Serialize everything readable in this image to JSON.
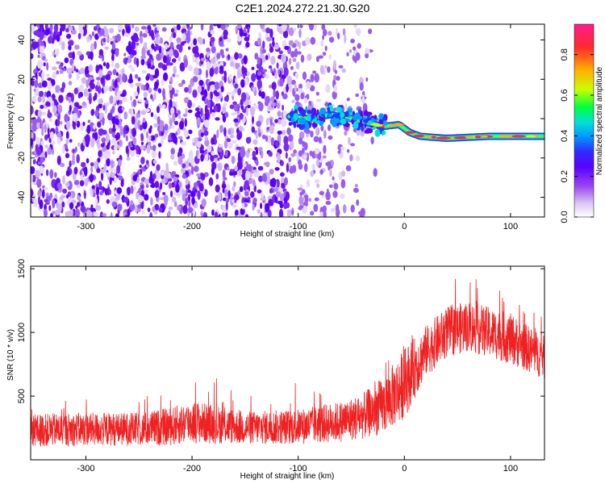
{
  "title": "C2E1.2024.272.21.30.G20",
  "colors": {
    "snr_line": "#ee2222",
    "axis": "#000000",
    "colormap": [
      "#ffffff",
      "#dcc6f2",
      "#9a46f0",
      "#6a00e8",
      "#2f2cff",
      "#009cff",
      "#00e0d8",
      "#00ff40",
      "#c8ff00",
      "#ffb000",
      "#ff2a2a",
      "#ff1a90"
    ]
  },
  "chart_data": [
    {
      "type": "heatmap",
      "title": "C2E1.2024.272.21.30.G20",
      "xlabel": "Height of straight line (km)",
      "ylabel": "Frequency (Hz)",
      "xlim": [
        -352,
        132
      ],
      "ylim": [
        -50,
        48
      ],
      "xticks": [
        -300,
        -200,
        -100,
        0,
        100
      ],
      "xtick_labels": [
        "-300",
        "-200",
        "-100",
        "0",
        "100"
      ],
      "yticks": [
        -40,
        -20,
        0,
        20,
        40
      ],
      "ytick_labels": [
        "-40",
        "-20",
        "0",
        "20",
        "40"
      ],
      "colorbar": {
        "label": "Normalized spectral amplitude",
        "range": [
          0,
          0.95
        ],
        "ticks": [
          0.0,
          0.2,
          0.4,
          0.6,
          0.8
        ],
        "tick_labels": [
          "0.0",
          "0.2",
          "0.4",
          "0.6",
          "0.8"
        ]
      },
      "signal_trace": {
        "description_points_height_km": [
          -108,
          -90,
          -70,
          -50,
          -35,
          -20,
          -5,
          5,
          15,
          40,
          80,
          132
        ],
        "frequency_hz": [
          1,
          0,
          2,
          0,
          -2,
          -4,
          -3,
          -7,
          -9,
          -10,
          -9,
          -9
        ]
      }
    },
    {
      "type": "line",
      "xlabel": "Height of straight line (km)",
      "ylabel": "SNR (10 * v/v)",
      "xlim": [
        -352,
        132
      ],
      "ylim": [
        0,
        1520
      ],
      "xticks": [
        -300,
        -200,
        -100,
        0,
        100
      ],
      "xtick_labels": [
        "-300",
        "-200",
        "-100",
        "0",
        "100"
      ],
      "yticks": [
        500,
        1000,
        1500
      ],
      "ytick_labels": [
        "500",
        "1000",
        "1500"
      ],
      "envelope": {
        "x": [
          -352,
          -300,
          -250,
          -220,
          -200,
          -150,
          -100,
          -60,
          -40,
          -20,
          0,
          20,
          40,
          60,
          80,
          100,
          132
        ],
        "mean": [
          230,
          240,
          240,
          260,
          300,
          250,
          260,
          300,
          340,
          420,
          600,
          850,
          1000,
          1050,
          1000,
          950,
          800
        ],
        "spread": [
          130,
          130,
          130,
          150,
          170,
          130,
          140,
          160,
          180,
          220,
          280,
          200,
          200,
          200,
          200,
          200,
          170
        ]
      }
    }
  ]
}
